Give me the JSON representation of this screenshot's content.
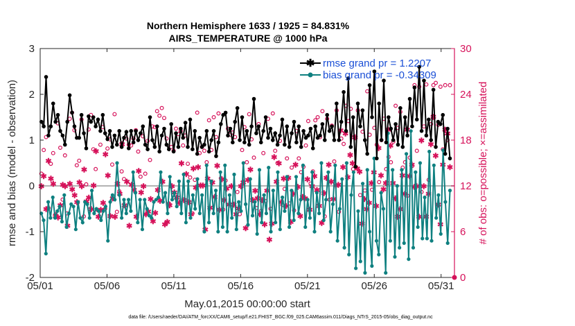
{
  "chart_data": {
    "type": "line",
    "title_line1": "Northern Hemisphere 1633 / 1925 = 84.831%",
    "title_line2": "AIRS_TEMPERATURE @ 1000 hPa",
    "xlabel": "May.01,2015 00:00:00 start",
    "ylabel_left": "rmse and bias (model - observation)",
    "ylabel_right": "# of obs: o=possible; ×=assimilated",
    "footnote": "data file: /Users/raeder/DAI/ATM_forcXX/CAM6_setup/f.e21.FHIST_BGC.f09_025.CAM6assim.011/Diags_NTrS_2015-05/obs_diag_output.nc",
    "x_tick_labels": [
      "05/01",
      "05/06",
      "05/11",
      "05/16",
      "05/21",
      "05/26",
      "05/31"
    ],
    "x_tick_days": [
      0,
      5,
      10,
      15,
      20,
      25,
      30
    ],
    "xlim_days": [
      0,
      31
    ],
    "ylim_left": [
      -2,
      3
    ],
    "yticks_left": [
      "-2",
      "-1",
      "0",
      "1",
      "2",
      "3"
    ],
    "ylim_right": [
      0,
      30
    ],
    "yticks_right": [
      "0",
      "6",
      "12",
      "18",
      "24",
      "30"
    ],
    "legend": {
      "location": "top-right",
      "rmse_label": "rmse grand pr = 1.2207",
      "bias_label": "bias grand pr = -0.34309"
    },
    "colors": {
      "rmse": "#000000",
      "bias": "#0f8080",
      "obs": "#d6125a",
      "legend_text": "#1a4fd6",
      "zero_line": "#b3b3b3"
    },
    "series": [
      {
        "name": "rmse",
        "axis": "left",
        "values": [
          1.4,
          1.3,
          2.38,
          1.1,
          1.3,
          1.8,
          1.4,
          1.55,
          1.2,
          1.1,
          0.9,
          1.4,
          1.98,
          1.6,
          1.3,
          1.05,
          1.05,
          1.55,
          1.15,
          0.82,
          1.52,
          1.4,
          1.5,
          1.3,
          1.45,
          1.2,
          1.55,
          1.15,
          1.02,
          1.2,
          0.85,
          1.1,
          0.9,
          1.2,
          0.85,
          1.05,
          1.18,
          0.82,
          1.2,
          0.95,
          1.2,
          1.0,
          1.15,
          1.3,
          0.9,
          0.8,
          1.5,
          1.0,
          0.85,
          1.3,
          0.75,
          1.1,
          1.25,
          0.9,
          0.8,
          1.35,
          0.75,
          1.15,
          0.85,
          1.25,
          1.05,
          1.38,
          0.85,
          1.45,
          0.8,
          1.2,
          0.7,
          1.05,
          0.85,
          0.9,
          1.2,
          0.75,
          1.0,
          1.2,
          0.65,
          0.95,
          1.35,
          1.55,
          1.6,
          1.1,
          1.25,
          0.95,
          1.4,
          1.7,
          1.0,
          1.5,
          0.95,
          1.2,
          0.9,
          1.3,
          1.9,
          1.15,
          1.3,
          0.95,
          1.2,
          1.5,
          1.05,
          1.25,
          1.0,
          1.15,
          0.9,
          1.1,
          1.45,
          0.9,
          1.3,
          0.85,
          1.15,
          1.4,
          0.95,
          1.3,
          0.85,
          1.2,
          1.05,
          1.1,
          1.25,
          0.82,
          1.3,
          1.05,
          1.1,
          1.35,
          1.0,
          1.55,
          1.2,
          1.3,
          1.0,
          1.8,
          1.0,
          1.4,
          2.05,
          1.2,
          2.35,
          0.85,
          1.5,
          0.42,
          1.8,
          1.3,
          1.65,
          1.0,
          0.7,
          2.2,
          1.5,
          2.5,
          0.6,
          1.8,
          1.0,
          2.3,
          0.95,
          1.5,
          1.25,
          1.0,
          1.35,
          0.9,
          1.7,
          0.85,
          1.5,
          1.1,
          1.9,
          1.3,
          2.15,
          1.45,
          2.6,
          1.2,
          2.3,
          1.1,
          1.45,
          1.0,
          2.1,
          0.85,
          1.4,
          1.35,
          1.55,
          0.7,
          1.25,
          0.6
        ]
      },
      {
        "name": "bias",
        "axis": "left",
        "values": [
          -0.6,
          -0.75,
          -1.48,
          -0.35,
          -0.7,
          -0.25,
          -0.7,
          -0.55,
          -0.45,
          -0.78,
          -0.2,
          -0.9,
          -0.6,
          -0.4,
          -0.45,
          -0.95,
          -0.35,
          -0.7,
          -0.8,
          -0.35,
          -0.4,
          -0.7,
          -0.1,
          -0.6,
          -0.5,
          -0.55,
          -0.75,
          -0.55,
          -0.45,
          -1.2,
          -0.35,
          -0.2,
          -0.3,
          0.5,
          -0.2,
          -0.7,
          -0.3,
          -0.6,
          -0.3,
          -0.55,
          0.3,
          -0.15,
          -0.8,
          -0.3,
          -0.95,
          -0.3,
          -0.5,
          -0.65,
          -0.7,
          -0.35,
          -0.3,
          -0.25,
          0.3,
          -0.35,
          -0.15,
          -0.6,
          0.2,
          -0.3,
          -0.15,
          -0.45,
          0.1,
          -0.6,
          0.25,
          -0.8,
          0.1,
          -0.7,
          -0.2,
          -0.5,
          0.15,
          -0.6,
          -0.2,
          -1.0,
          0.45,
          -0.8,
          0.1,
          -0.6,
          -0.1,
          -1.0,
          0.3,
          -0.9,
          0.45,
          -1.0,
          -0.2,
          -0.7,
          0.25,
          -0.95,
          -0.35,
          -0.55,
          0.5,
          -0.4,
          -0.85,
          0.15,
          -0.65,
          -0.35,
          -1.05,
          0.35,
          -0.8,
          -0.2,
          -0.6,
          0.4,
          -1.0,
          -0.1,
          -0.8,
          0.3,
          -0.95,
          -0.25,
          -0.55,
          0.2,
          -0.9,
          -0.1,
          -0.75,
          0.2,
          -0.6,
          -0.3,
          0.45,
          -0.9,
          -0.3,
          -0.7,
          0.3,
          -1.0,
          -0.15,
          -0.6,
          0.5,
          -0.75,
          -0.3,
          0.3,
          -1.0,
          -0.4,
          0.45,
          -1.2,
          -0.5,
          0.15,
          -1.35,
          0.5,
          -1.5,
          -0.2,
          0.3,
          -1.8,
          -0.55,
          -1.65,
          0.05,
          -1.9,
          0.35,
          -1.0,
          -1.75,
          0.6,
          -1.2,
          -1.5,
          -0.15,
          -0.5,
          -1.9,
          1.15,
          -1.2,
          0.35,
          -1.55,
          0.0,
          -1.35,
          0.35,
          -1.25,
          0.7,
          -1.6,
          1.2,
          -1.35,
          0.3,
          -0.9,
          0.5,
          -1.15,
          -0.25,
          -1.15,
          0.75,
          -1.2,
          0.45,
          -0.7,
          -0.2,
          -1.05,
          0.78,
          -0.35,
          -1.25,
          -0.1
        ]
      },
      {
        "name": "possible",
        "axis": "right",
        "values": [
          13.6,
          16.7,
          18.4,
          9.1,
          14.9,
          16.3,
          8.3,
          20.2,
          17.0,
          10.2,
          16.0,
          8.4,
          20.8,
          21.6,
          19.3,
          14.7,
          15.3,
          20.7,
          8.0,
          12.2,
          19.4,
          21.3,
          16.8,
          14.2,
          8.8,
          17.4,
          19.7,
          9.0,
          16.9,
          18.1,
          14.8,
          21.4,
          8.6,
          11.3,
          13.9,
          12.9,
          18.2,
          17.4,
          17.3,
          18.2,
          19.3,
          16.5,
          13.2,
          18.5,
          13.6,
          17.9,
          15.4,
          19.8,
          19.7,
          21.8,
          21.2,
          22.2,
          20.9,
          18.2,
          9.7,
          17.1,
          16.6,
          19.5,
          18.8,
          19.2,
          17.3,
          18.6,
          14.9,
          13.1,
          8.4,
          12.8,
          21.6,
          16.3,
          17.1,
          16.6,
          15.1,
          20.6,
          16.7,
          21.0,
          18.4,
          21.5,
          13.0,
          8.9,
          12.7,
          19.5,
          18.7,
          19.0,
          18.4,
          11.2,
          8.3,
          16.7,
          19.7,
          15.1,
          21.4,
          18.1,
          15.7,
          9.1,
          20.1,
          8.7,
          16.3,
          10.0,
          20.8,
          9.0,
          21.5,
          16.6,
          15.0,
          17.9,
          9.5,
          11.6,
          15.6,
          9.7,
          14.4,
          8.8,
          19.2,
          15.6,
          13.8,
          14.5,
          17.3,
          20.5,
          12.3,
          13.9,
          20.6,
          21.0,
          18.4,
          21.8,
          8.0,
          20.8,
          10.2,
          19.9,
          15.2,
          21.9,
          8.6,
          18.2,
          17.5,
          22.5,
          20.5,
          22.1,
          14.2,
          18.3,
          21.9,
          10.8,
          19.1,
          11.4,
          24.4,
          18.7,
          11.5,
          19.6,
          17.4,
          12.5,
          18.0,
          20.8,
          14.2,
          15.8,
          15.1,
          17.8,
          22.5,
          19.6,
          21.7,
          14.4,
          15.1,
          10.7,
          15.7,
          14.6,
          25.2,
          16.6,
          25.0,
          11.2,
          19.8,
          25.3,
          12.8,
          20.1,
          25.2,
          25.5,
          20.0,
          25.0,
          16.8,
          25.2,
          18.0,
          25.2
        ]
      },
      {
        "name": "assimilated",
        "axis": "right",
        "values": [
          12.0,
          13.3,
          9.0,
          15.3,
          13.0,
          12.3,
          8.1,
          7.9,
          9.5,
          12.2,
          12.0,
          6.8,
          12.3,
          11.6,
          10.8,
          9.9,
          12.5,
          12.0,
          14.2,
          10.0,
          10.5,
          9.0,
          12.1,
          16.6,
          8.0,
          8.9,
          9.8,
          16.2,
          13.4,
          8.1,
          10.4,
          8.0,
          12.3,
          11.0,
          17.5,
          9.5,
          12.6,
          6.8,
          12.2,
          11.5,
          8.0,
          14.0,
          11.2,
          12.0,
          8.3,
          8.7,
          10.3,
          7.4,
          8.5,
          11.5,
          10.1,
          12.6,
          7.0,
          7.3,
          9.5,
          12.0,
          11.2,
          10.5,
          9.8,
          15.0,
          10.2,
          13.6,
          9.9,
          8.3,
          14.3,
          11.8,
          14.5,
          12.1,
          12.1,
          6.3,
          13.0,
          9.2,
          12.5,
          10.6,
          14.7,
          8.9,
          12.9,
          10.2,
          11.7,
          9.6,
          12.0,
          9.6,
          8.3,
          9.1,
          12.0,
          12.5,
          6.5,
          12.8,
          14.2,
          10.2,
          11.4,
          10.4,
          8.3,
          10.2,
          7.0,
          11.4,
          5.0,
          7.1,
          15.8,
          12.6,
          15.0,
          9.9,
          13.0,
          9.4,
          13.1,
          7.3,
          11.0,
          14.8,
          11.9,
          8.1,
          10.6,
          10.4,
          12.9,
          8.9,
          12.0,
          13.3,
          11.5,
          9.4,
          7.2,
          11.1,
          13.1,
          14.8,
          12.6,
          10.3,
          12.1,
          12.2,
          19.3,
          14.5,
          18.9,
          13.2,
          16.1,
          15.0,
          18.4,
          14.3,
          13.9,
          7.1,
          10.3,
          9.0,
          9.8,
          12.4,
          13.8,
          9.4,
          17.0,
          13.4,
          11.6,
          12.4,
          19.4,
          17.3,
          12.4,
          10.4,
          8.0,
          9.0,
          13.4,
          11.0,
          19.4,
          13.3,
          14.8,
          11.9,
          12.0,
          8.0,
          18.0,
          12.0,
          8.0,
          11.0,
          17.5,
          21.1,
          16.0,
          9.6,
          7.0,
          14.8,
          19.4,
          18.9,
          14.5
        ]
      }
    ],
    "outlier_marks": [
      {
        "series": "assimilated",
        "day": 31.0,
        "value": 0
      }
    ]
  }
}
